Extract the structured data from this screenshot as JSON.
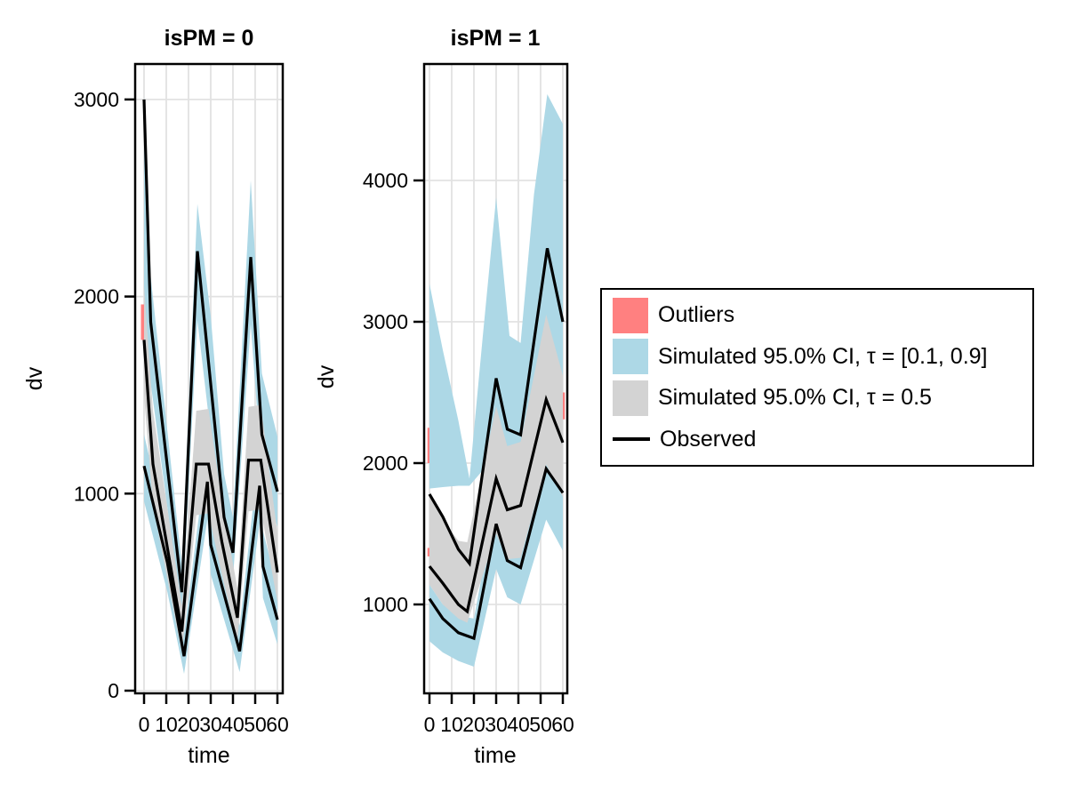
{
  "figure": {
    "background": "#FFFFFF",
    "axis_x_label": "time",
    "axis_y_label": "dv",
    "colors": {
      "outliers": "#FF8080",
      "ci_outer": "#ADD8E6",
      "ci_median": "#D3D3D3",
      "observed": "#000000",
      "grid": "#E2E2E2",
      "frame": "#000000"
    },
    "legend": {
      "items": [
        {
          "label": "Outliers",
          "type": "rect",
          "color": "#FF8080"
        },
        {
          "label": "Simulated 95.0% CI, τ = [0.1, 0.9]",
          "type": "rect",
          "color": "#ADD8E6"
        },
        {
          "label": "Simulated 95.0% CI, τ = 0.5",
          "type": "rect",
          "color": "#D3D3D3"
        },
        {
          "label": "Observed",
          "type": "line",
          "color": "#000000"
        }
      ]
    }
  },
  "chart_data": [
    {
      "type": "line",
      "title": "isPM = 0",
      "xlabel": "time",
      "ylabel": "dv",
      "x_ticks": [
        0,
        10,
        20,
        30,
        40,
        50,
        60
      ],
      "y_ticks": [
        0,
        1000,
        2000,
        3000
      ],
      "xlim": [
        -4,
        62.4
      ],
      "ylim": [
        -14,
        3180
      ],
      "grid": true,
      "legend_position": "right-outside",
      "series": [
        {
          "name": "outliers",
          "kind": "marks",
          "color_key": "outliers",
          "rects": [
            {
              "t": [
                -1.4,
                0.4
              ],
              "v": [
                1780,
                1960
              ]
            }
          ]
        },
        {
          "name": "simulated-ci-tau-90",
          "kind": "band",
          "color_key": "ci_outer",
          "t": [
            0,
            3,
            17,
            24,
            30,
            36,
            40,
            48,
            53,
            60
          ],
          "hi": [
            3020,
            2100,
            640,
            2470,
            1900,
            1100,
            880,
            2590,
            1610,
            1290
          ],
          "lo": [
            1780,
            1560,
            380,
            1880,
            1300,
            750,
            570,
            1860,
            1090,
            830
          ]
        },
        {
          "name": "simulated-ci-tau-10",
          "kind": "band",
          "color_key": "ci_outer",
          "t": [
            0,
            10.5,
            18,
            28.5,
            30,
            43,
            52,
            53.5,
            60
          ],
          "hi": [
            1300,
            790,
            290,
            1230,
            910,
            330,
            1230,
            810,
            520
          ],
          "lo": [
            960,
            500,
            85,
            870,
            590,
            95,
            850,
            470,
            235
          ]
        },
        {
          "name": "simulated-ci-tau-50",
          "kind": "band",
          "color_key": "ci_median",
          "t": [
            0,
            4,
            17,
            23.5,
            29,
            35,
            42,
            47,
            52.5,
            60
          ],
          "hi": [
            2050,
            1420,
            430,
            1420,
            1430,
            960,
            520,
            1440,
            1450,
            800
          ],
          "lo": [
            1500,
            940,
            195,
            890,
            900,
            590,
            255,
            910,
            920,
            450
          ]
        },
        {
          "name": "observed-p90",
          "kind": "line",
          "color_key": "observed",
          "t": [
            0,
            3,
            17,
            24,
            36,
            40,
            48,
            53,
            60
          ],
          "v": [
            3000,
            1870,
            500,
            2230,
            880,
            700,
            2200,
            1300,
            1010
          ]
        },
        {
          "name": "observed-p50",
          "kind": "line",
          "color_key": "observed",
          "t": [
            0,
            4,
            17,
            23.5,
            29,
            35,
            42,
            47,
            52.5,
            60
          ],
          "v": [
            1780,
            1150,
            300,
            1150,
            1150,
            756,
            370,
            1170,
            1170,
            600
          ]
        },
        {
          "name": "observed-p10",
          "kind": "line",
          "color_key": "observed",
          "t": [
            0,
            10.5,
            18,
            28.5,
            30,
            43,
            52,
            53.5,
            60
          ],
          "v": [
            1140,
            650,
            175,
            1060,
            740,
            200,
            1040,
            630,
            360
          ]
        }
      ]
    },
    {
      "type": "line",
      "title": "isPM = 1",
      "xlabel": "time",
      "ylabel": "dv",
      "x_ticks": [
        0,
        10,
        20,
        30,
        40,
        50,
        60
      ],
      "y_ticks": [
        1000,
        2000,
        3000,
        4000
      ],
      "xlim": [
        -2.4,
        62
      ],
      "ylim": [
        371,
        4824
      ],
      "grid": true,
      "legend_position": "right-outside",
      "series": [
        {
          "name": "outliers",
          "kind": "marks",
          "color_key": "outliers",
          "rects": [
            {
              "t": [
                -0.9,
                0.4
              ],
              "v": [
                2000,
                2250
              ]
            },
            {
              "t": [
                -0.9,
                0.4
              ],
              "v": [
                1340,
                1400
              ]
            },
            {
              "t": [
                59.6,
                60.9
              ],
              "v": [
                2310,
                2500
              ]
            }
          ]
        },
        {
          "name": "simulated-ci-tau-90",
          "kind": "band",
          "color_key": "ci_outer",
          "t": [
            0,
            6,
            13,
            18,
            24,
            30,
            36,
            41,
            47,
            53,
            60
          ],
          "hi": [
            3270,
            2800,
            2300,
            1890,
            2900,
            3880,
            2900,
            2850,
            3900,
            4610,
            4400
          ],
          "lo": [
            1820,
            1830,
            1840,
            1840,
            1950,
            2150,
            1950,
            1950,
            2500,
            2950,
            2600
          ]
        },
        {
          "name": "simulated-ci-tau-10",
          "kind": "band",
          "color_key": "ci_outer",
          "t": [
            0,
            6,
            13,
            20,
            30,
            35,
            41,
            52.5,
            60
          ],
          "hi": [
            1140,
            1000,
            920,
            900,
            1750,
            1500,
            1450,
            2250,
            2050
          ],
          "lo": [
            740,
            660,
            600,
            560,
            1250,
            1050,
            1000,
            1600,
            1380
          ]
        },
        {
          "name": "simulated-ci-tau-50",
          "kind": "band",
          "color_key": "ci_median",
          "t": [
            0,
            6,
            13,
            17,
            30,
            35,
            41,
            52.5,
            60
          ],
          "hi": [
            1800,
            1600,
            1450,
            1440,
            2400,
            2120,
            2150,
            3050,
            2620
          ],
          "lo": [
            1140,
            1000,
            900,
            870,
            1500,
            1320,
            1330,
            1990,
            1760
          ]
        },
        {
          "name": "observed-p90",
          "kind": "line",
          "color_key": "observed",
          "t": [
            0,
            6,
            13,
            18,
            30,
            35,
            41,
            53,
            60
          ],
          "v": [
            1780,
            1620,
            1390,
            1290,
            2600,
            2240,
            2200,
            3520,
            3000
          ]
        },
        {
          "name": "observed-p50",
          "kind": "line",
          "color_key": "observed",
          "t": [
            0,
            6,
            13,
            17,
            30,
            35,
            41,
            52.5,
            60
          ],
          "v": [
            1270,
            1150,
            1000,
            950,
            1890,
            1670,
            1700,
            2450,
            2145
          ]
        },
        {
          "name": "observed-p10",
          "kind": "line",
          "color_key": "observed",
          "t": [
            0,
            6,
            13,
            20,
            30,
            35,
            41,
            52.5,
            60
          ],
          "v": [
            1040,
            900,
            800,
            760,
            1570,
            1310,
            1260,
            1960,
            1790
          ]
        }
      ]
    }
  ]
}
